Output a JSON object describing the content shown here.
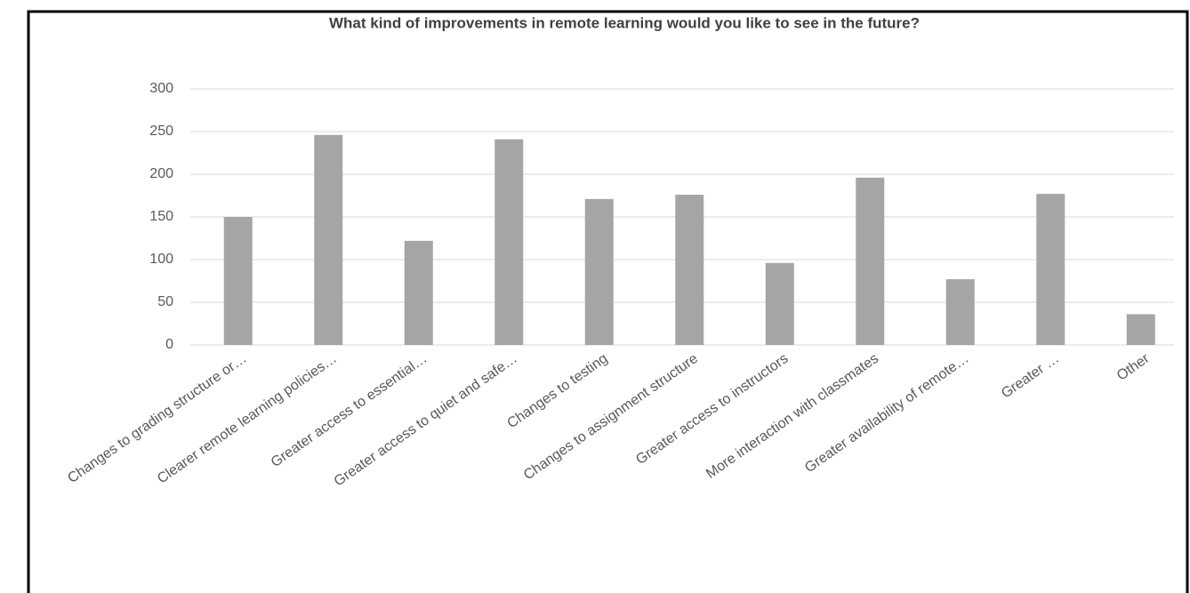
{
  "chart_data": {
    "type": "bar",
    "title": "What kind of improvements in remote learning would you like to see in the future?",
    "categories": [
      "Changes to grading structure or…",
      "Clearer remote learning policies…",
      "Greater access to essential…",
      "Greater access to quiet and safe…",
      "Changes to testing",
      "Changes to assignment structure",
      "Greater access to instructors",
      "More interaction with classmates",
      "Greater availability of remote…",
      "Greater …",
      "Other"
    ],
    "values": [
      150,
      246,
      122,
      241,
      171,
      176,
      96,
      196,
      77,
      177,
      36
    ],
    "color": "#a5a5a5",
    "ylim": [
      0,
      300
    ],
    "yticks": [
      0,
      50,
      100,
      150,
      200,
      250,
      300
    ],
    "grid": true
  }
}
